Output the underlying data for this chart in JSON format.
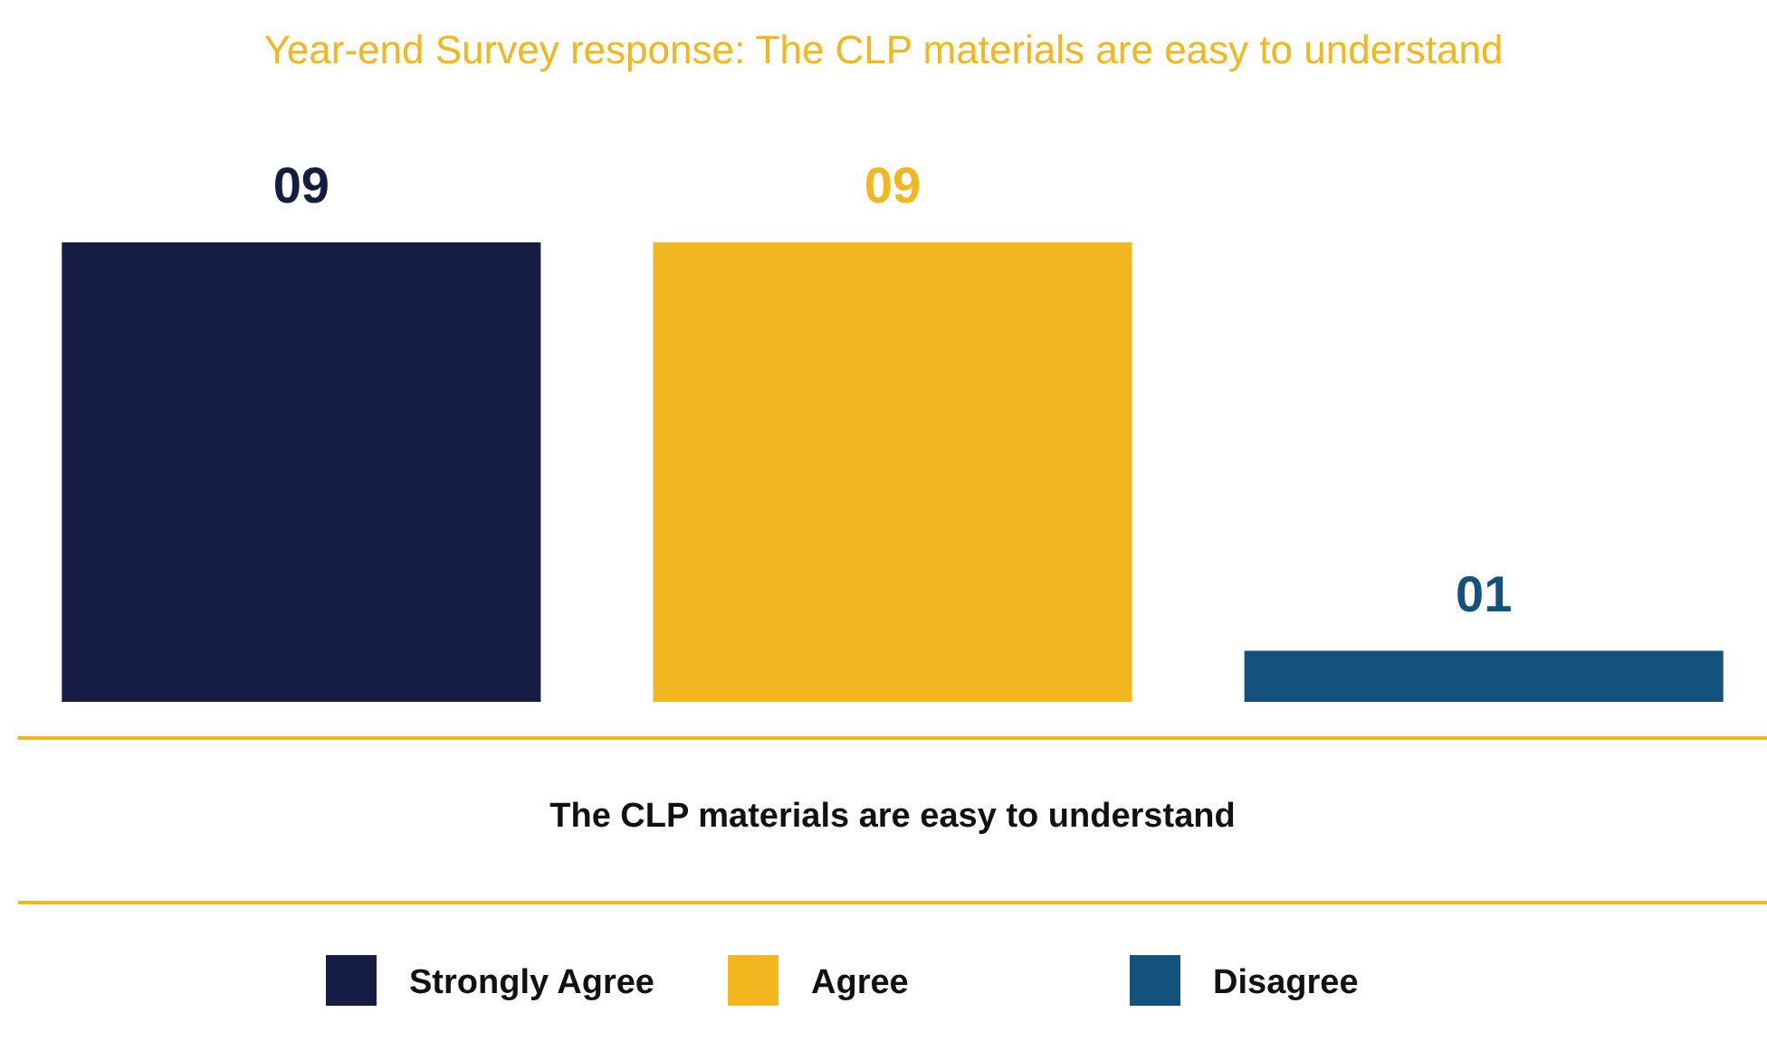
{
  "chart_data": {
    "type": "bar",
    "title": "Year-end Survey response: The CLP materials are easy to understand",
    "xlabel": "The CLP materials are easy to understand",
    "categories": [
      null
    ],
    "series": [
      {
        "name": "Strongly Agree",
        "color": "#161d45",
        "values": [
          9
        ],
        "value_labels": [
          "09"
        ]
      },
      {
        "name": "Agree",
        "color": "#f2b71e",
        "values": [
          9
        ],
        "value_labels": [
          "09"
        ]
      },
      {
        "name": "Disagree",
        "color": "#13527c",
        "values": [
          1
        ],
        "value_labels": [
          "01"
        ]
      }
    ],
    "legend": "bottom"
  }
}
